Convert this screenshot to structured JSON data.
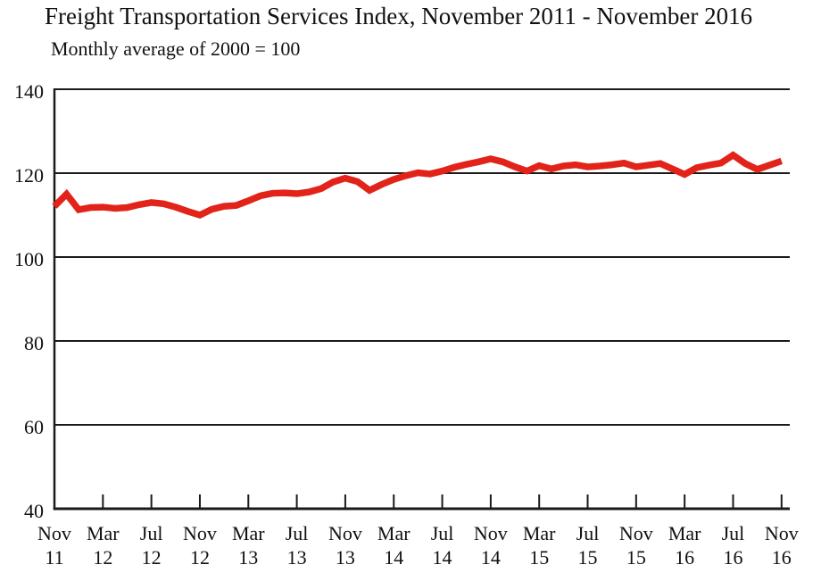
{
  "chart_data": {
    "type": "line",
    "title": "Freight Transportation Services Index, November 2011 - November 2016",
    "subtitle": "Monthly average of 2000 = 100",
    "ylim": [
      40,
      140
    ],
    "yticks": [
      140,
      120,
      100,
      80,
      60,
      40
    ],
    "grid": "horizontal",
    "legend": "none",
    "axis_color": "#1a1a1a",
    "text_color": "#111111",
    "x_tick_interval_months": 4,
    "xticks": [
      {
        "month": "Nov",
        "year": "11"
      },
      {
        "month": "Mar",
        "year": "12"
      },
      {
        "month": "Jul",
        "year": "12"
      },
      {
        "month": "Nov",
        "year": "12"
      },
      {
        "month": "Mar",
        "year": "13"
      },
      {
        "month": "Jul",
        "year": "13"
      },
      {
        "month": "Nov",
        "year": "13"
      },
      {
        "month": "Mar",
        "year": "14"
      },
      {
        "month": "Jul",
        "year": "14"
      },
      {
        "month": "Nov",
        "year": "14"
      },
      {
        "month": "Mar",
        "year": "15"
      },
      {
        "month": "Jul",
        "year": "15"
      },
      {
        "month": "Nov",
        "year": "15"
      },
      {
        "month": "Mar",
        "year": "16"
      },
      {
        "month": "Jul",
        "year": "16"
      },
      {
        "month": "Nov",
        "year": "16"
      }
    ],
    "series": [
      {
        "name": "Freight Transportation Services Index (monthly average, 2000 = 100)",
        "color": "#e2231a",
        "start": "Nov 2011",
        "values": [
          112.1,
          115.0,
          111.3,
          111.8,
          111.9,
          111.6,
          111.8,
          112.5,
          113.0,
          112.7,
          111.9,
          110.9,
          110.0,
          111.4,
          112.1,
          112.3,
          113.4,
          114.6,
          115.2,
          115.3,
          115.1,
          115.5,
          116.3,
          117.9,
          118.8,
          118.0,
          115.9,
          117.3,
          118.5,
          119.4,
          120.1,
          119.8,
          120.5,
          121.4,
          122.1,
          122.7,
          123.4,
          122.7,
          121.5,
          120.5,
          121.8,
          121.0,
          121.7,
          122.0,
          121.5,
          121.7,
          122.0,
          122.4,
          121.5,
          121.9,
          122.3,
          121.0,
          119.7,
          121.3,
          121.9,
          122.4,
          124.3,
          122.3,
          120.9,
          121.9,
          122.9
        ]
      }
    ]
  }
}
